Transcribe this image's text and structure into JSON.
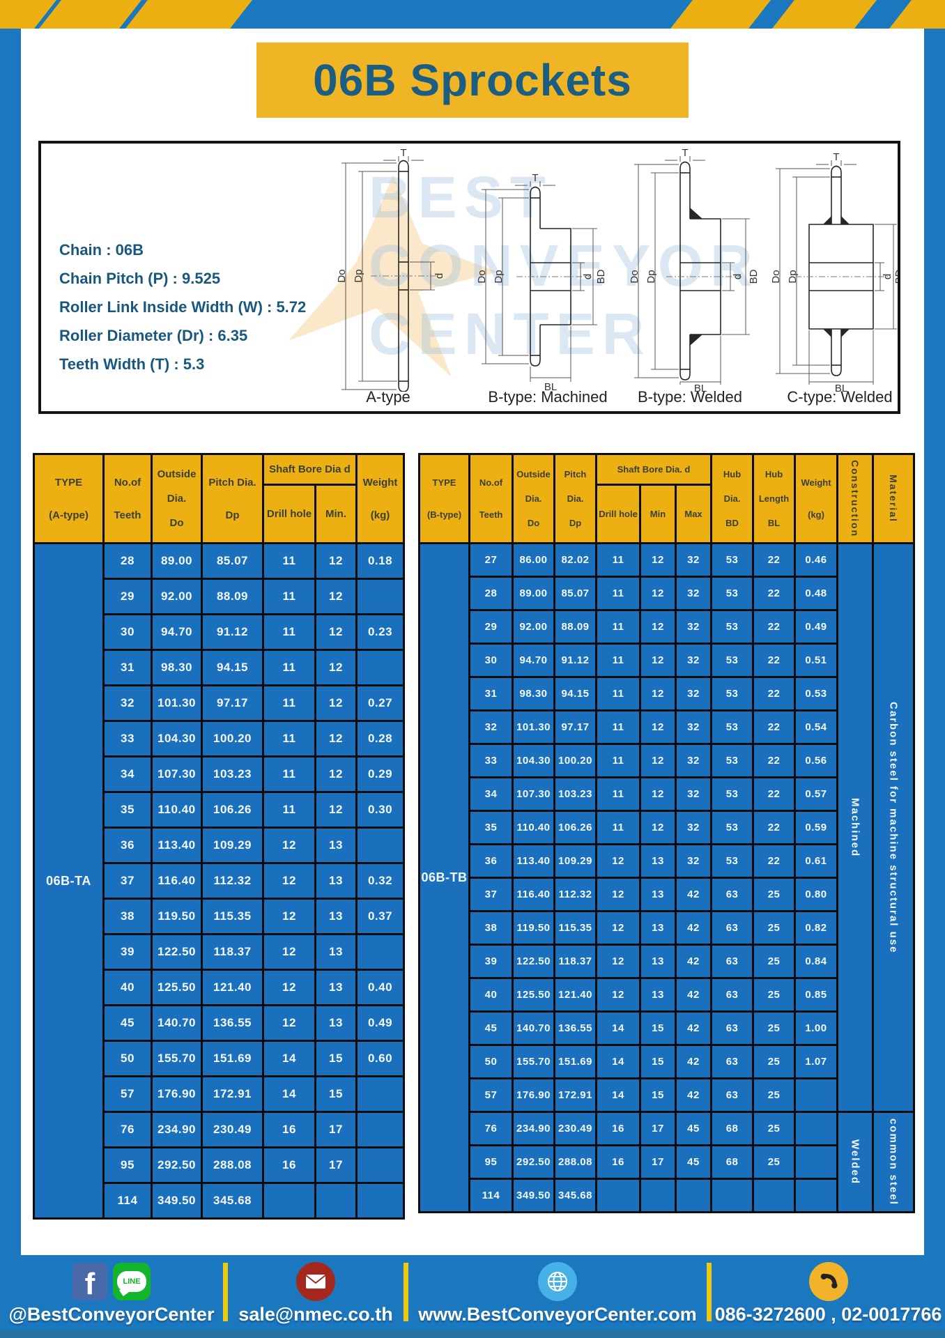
{
  "page": {
    "title": "06B Sprockets"
  },
  "specs": {
    "lines": [
      "Chain  : 06B",
      "Chain Pitch (P)  :  9.525",
      "Roller Link Inside Width (W)  :  5.72",
      "Roller Diameter (Dr)  : 6.35",
      "Teeth Width (T)  :  5.3"
    ]
  },
  "diagrams": {
    "labels": [
      "A-type",
      "B-type: Machined",
      "B-type: Welded",
      "C-type: Welded"
    ],
    "dims": {
      "t": "T",
      "do": "Do",
      "dp": "Dp",
      "d": "d",
      "bd": "BD",
      "bl": "BL"
    },
    "watermark": [
      "BEST",
      "CONVEYOR",
      "CENTER"
    ]
  },
  "table_a": {
    "type_value": "06B-TA",
    "headers": {
      "type": [
        "TYPE",
        "(A-type)"
      ],
      "teeth": [
        "No.of",
        "Teeth"
      ],
      "outside": [
        "Outside",
        "Dia.",
        "Do"
      ],
      "pitch": [
        "Pitch Dia.",
        "Dp"
      ],
      "shaft_group": "Shaft Bore Dia d",
      "drill": "Drill hole",
      "min": "Min.",
      "weight": [
        "Weight",
        "(kg)"
      ]
    },
    "rows": [
      [
        "28",
        "89.00",
        "85.07",
        "11",
        "12",
        "0.18"
      ],
      [
        "29",
        "92.00",
        "88.09",
        "11",
        "12",
        ""
      ],
      [
        "30",
        "94.70",
        "91.12",
        "11",
        "12",
        "0.23"
      ],
      [
        "31",
        "98.30",
        "94.15",
        "11",
        "12",
        ""
      ],
      [
        "32",
        "101.30",
        "97.17",
        "11",
        "12",
        "0.27"
      ],
      [
        "33",
        "104.30",
        "100.20",
        "11",
        "12",
        "0.28"
      ],
      [
        "34",
        "107.30",
        "103.23",
        "11",
        "12",
        "0.29"
      ],
      [
        "35",
        "110.40",
        "106.26",
        "11",
        "12",
        "0.30"
      ],
      [
        "36",
        "113.40",
        "109.29",
        "12",
        "13",
        ""
      ],
      [
        "37",
        "116.40",
        "112.32",
        "12",
        "13",
        "0.32"
      ],
      [
        "38",
        "119.50",
        "115.35",
        "12",
        "13",
        "0.37"
      ],
      [
        "39",
        "122.50",
        "118.37",
        "12",
        "13",
        ""
      ],
      [
        "40",
        "125.50",
        "121.40",
        "12",
        "13",
        "0.40"
      ],
      [
        "45",
        "140.70",
        "136.55",
        "12",
        "13",
        "0.49"
      ],
      [
        "50",
        "155.70",
        "151.69",
        "14",
        "15",
        "0.60"
      ],
      [
        "57",
        "176.90",
        "172.91",
        "14",
        "15",
        ""
      ],
      [
        "76",
        "234.90",
        "230.49",
        "16",
        "17",
        ""
      ],
      [
        "95",
        "292.50",
        "288.08",
        "16",
        "17",
        ""
      ],
      [
        "114",
        "349.50",
        "345.68",
        "",
        "",
        ""
      ]
    ]
  },
  "table_b": {
    "type_value": "06B-TB",
    "headers": {
      "type": [
        "TYPE",
        "(B-type)"
      ],
      "teeth": [
        "No.of",
        "Teeth"
      ],
      "outside": [
        "Outside",
        "Dia.",
        "Do"
      ],
      "pitch": [
        "Pitch",
        "Dia.",
        "Dp"
      ],
      "shaft_group": "Shaft Bore Dia. d",
      "drill": "Drill hole",
      "min": "Min",
      "max": "Max",
      "hub_dia": [
        "Hub",
        "Dia.",
        "BD"
      ],
      "hub_len": [
        "Hub",
        "Length",
        "BL"
      ],
      "weight": [
        "Weight",
        "(kg)"
      ],
      "construction": "Construction",
      "material": "Material"
    },
    "construction_groups": [
      {
        "label": "Machined",
        "rows": 17
      },
      {
        "label": "Welded",
        "rows": 3
      }
    ],
    "material_groups": [
      {
        "label": "Carbon steel for machine structural use",
        "rows": 17
      },
      {
        "label": "common steel",
        "rows": 3
      }
    ],
    "rows": [
      [
        "27",
        "86.00",
        "82.02",
        "11",
        "12",
        "32",
        "53",
        "22",
        "0.46"
      ],
      [
        "28",
        "89.00",
        "85.07",
        "11",
        "12",
        "32",
        "53",
        "22",
        "0.48"
      ],
      [
        "29",
        "92.00",
        "88.09",
        "11",
        "12",
        "32",
        "53",
        "22",
        "0.49"
      ],
      [
        "30",
        "94.70",
        "91.12",
        "11",
        "12",
        "32",
        "53",
        "22",
        "0.51"
      ],
      [
        "31",
        "98.30",
        "94.15",
        "11",
        "12",
        "32",
        "53",
        "22",
        "0.53"
      ],
      [
        "32",
        "101.30",
        "97.17",
        "11",
        "12",
        "32",
        "53",
        "22",
        "0.54"
      ],
      [
        "33",
        "104.30",
        "100.20",
        "11",
        "12",
        "32",
        "53",
        "22",
        "0.56"
      ],
      [
        "34",
        "107.30",
        "103.23",
        "11",
        "12",
        "32",
        "53",
        "22",
        "0.57"
      ],
      [
        "35",
        "110.40",
        "106.26",
        "11",
        "12",
        "32",
        "53",
        "22",
        "0.59"
      ],
      [
        "36",
        "113.40",
        "109.29",
        "12",
        "13",
        "32",
        "53",
        "22",
        "0.61"
      ],
      [
        "37",
        "116.40",
        "112.32",
        "12",
        "13",
        "42",
        "63",
        "25",
        "0.80"
      ],
      [
        "38",
        "119.50",
        "115.35",
        "12",
        "13",
        "42",
        "63",
        "25",
        "0.82"
      ],
      [
        "39",
        "122.50",
        "118.37",
        "12",
        "13",
        "42",
        "63",
        "25",
        "0.84"
      ],
      [
        "40",
        "125.50",
        "121.40",
        "12",
        "13",
        "42",
        "63",
        "25",
        "0.85"
      ],
      [
        "45",
        "140.70",
        "136.55",
        "14",
        "15",
        "42",
        "63",
        "25",
        "1.00"
      ],
      [
        "50",
        "155.70",
        "151.69",
        "14",
        "15",
        "42",
        "63",
        "25",
        "1.07"
      ],
      [
        "57",
        "176.90",
        "172.91",
        "14",
        "15",
        "42",
        "63",
        "25",
        ""
      ],
      [
        "76",
        "234.90",
        "230.49",
        "16",
        "17",
        "45",
        "68",
        "25",
        ""
      ],
      [
        "95",
        "292.50",
        "288.08",
        "16",
        "17",
        "45",
        "68",
        "25",
        ""
      ],
      [
        "114",
        "349.50",
        "345.68",
        "",
        "",
        "",
        "",
        "",
        ""
      ]
    ]
  },
  "footer": {
    "social_text": "@BestConveyorCenter",
    "line_label": "LINE",
    "facebook_label": "f",
    "email": "sale@nmec.co.th",
    "website": "www.BestConveyorCenter.com",
    "phones": "086-3272600 , 02-0017766"
  },
  "colors": {
    "frame_blue": "#1b78bf",
    "cell_blue": "#1a70bd",
    "header_yellow": "#edb012",
    "title_yellow": "#f0b525",
    "divider_yellow": "#edc90f",
    "title_text": "#1c5d82",
    "spec_text": "#19587e",
    "header_text": "#3a4036",
    "facebook_blue": "#4a69a8",
    "line_green": "#12b52c",
    "email_red": "#a5281e",
    "globe_blue": "#45b1e6",
    "phone_yellow": "#f0b32a"
  }
}
